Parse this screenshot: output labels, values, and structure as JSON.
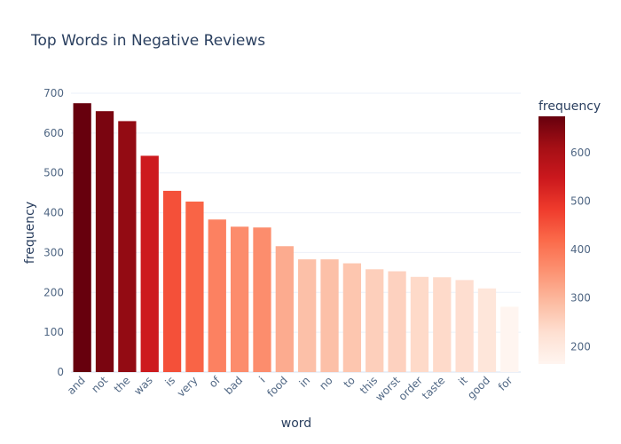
{
  "chart_data": {
    "type": "bar",
    "title": "Top Words in Negative Reviews",
    "xlabel": "word",
    "ylabel": "frequency",
    "ylim": [
      0,
      700
    ],
    "yticks": [
      0,
      100,
      200,
      300,
      400,
      500,
      600,
      700
    ],
    "grid": true,
    "categories": [
      "and",
      "not",
      "the",
      "was",
      "is",
      "very",
      "of",
      "bad",
      "i",
      "food",
      "in",
      "no",
      "to",
      "this",
      "worst",
      "order",
      "taste",
      "it",
      "good",
      "for"
    ],
    "values": [
      675,
      655,
      630,
      543,
      455,
      428,
      383,
      365,
      363,
      316,
      283,
      283,
      273,
      258,
      253,
      239,
      238,
      231,
      210,
      164
    ],
    "colorscale": {
      "name": "Reds",
      "title": "frequency",
      "range": [
        164,
        675
      ],
      "ticks": [
        200,
        300,
        400,
        500,
        600
      ],
      "stops": [
        "#fff5f0",
        "#fee0d2",
        "#fcbba1",
        "#fc9272",
        "#fb6a4a",
        "#ef3b2c",
        "#cb181d",
        "#a50f15",
        "#67000d"
      ]
    }
  }
}
